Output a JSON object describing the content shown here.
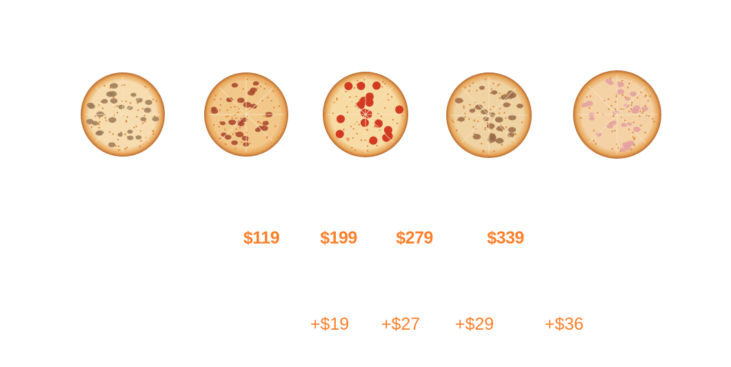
{
  "accent_color": "#ff7f2a",
  "pizzas": [
    {
      "name": "mushroom-pizza",
      "topping_color": "#9c7a58",
      "cheese_color": "#f6dcae"
    },
    {
      "name": "bacon-pizza",
      "topping_color": "#a8432a",
      "cheese_color": "#f2c88a"
    },
    {
      "name": "pepperoni-pizza",
      "topping_color": "#d23a22",
      "cheese_color": "#f7dba4"
    },
    {
      "name": "meat-pizza",
      "topping_color": "#9a6a48",
      "cheese_color": "#efd3a2"
    },
    {
      "name": "ham-pizza",
      "topping_color": "#e3a0a0",
      "cheese_color": "#f4d2a6"
    }
  ],
  "prices": [
    "$119",
    "$199",
    "$279",
    "$339"
  ],
  "extras": [
    "+$19",
    "+$27",
    "+$29",
    "+$36"
  ]
}
